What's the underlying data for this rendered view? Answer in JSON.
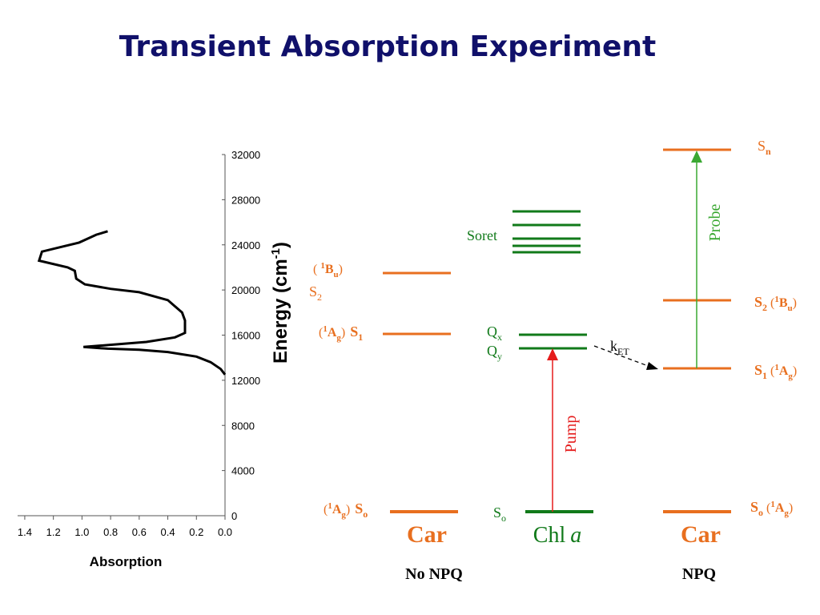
{
  "title": "Transient Absorption Experiment",
  "colors": {
    "title": "#10106a",
    "orange": "#e86f1f",
    "green": "#117a1a",
    "pump": "#e51c1c",
    "probe": "#3aa832"
  },
  "chart_data": {
    "type": "line",
    "xlabel": "Absorption",
    "ylabel": "Energy (cm-1)",
    "x_ticks": [
      "1.4",
      "1.2",
      "1.0",
      "0.8",
      "0.6",
      "0.4",
      "0.2",
      "0.0"
    ],
    "y_ticks": [
      "32000",
      "28000",
      "24000",
      "20000",
      "16000",
      "12000",
      "8000",
      "4000",
      "0"
    ],
    "xlim": [
      0.0,
      1.45
    ],
    "ylim": [
      0,
      32000
    ],
    "x_reversed": true,
    "series": [
      {
        "x": [
          0.0,
          0.03,
          0.1,
          0.2,
          0.4,
          0.6,
          0.82,
          0.99,
          0.55,
          0.35,
          0.28,
          0.28,
          0.28,
          0.3,
          0.4,
          0.6,
          0.8,
          0.98,
          1.04,
          1.05,
          1.1,
          1.3,
          1.28,
          1.15,
          1.02,
          0.9,
          0.82
        ],
        "y": [
          12500,
          13000,
          13600,
          14100,
          14500,
          14700,
          14800,
          14950,
          15400,
          15800,
          16200,
          16800,
          17300,
          18000,
          19100,
          19800,
          20100,
          20500,
          21000,
          21700,
          22000,
          22600,
          23400,
          23800,
          24200,
          24900,
          25200
        ]
      }
    ]
  },
  "diagram": {
    "left_col": {
      "label": "Car",
      "caption": "No NPQ",
      "s2_prefix": "( ",
      "s2_sup": "1",
      "s2_term": "B",
      "s2_sub": "u",
      "s2_suffix": ")",
      "s2_name": "S",
      "s2_name_sub": "2",
      "s1_open": "(",
      "s1_sup": "1",
      "s1_term": "A",
      "s1_sub": "g",
      "s1_close": ")",
      "s1_name": "S",
      "s1_name_sub": "1",
      "s0_open": "(",
      "s0_sup": "1",
      "s0_term": "A",
      "s0_sub": "g",
      "s0_close": ")",
      "s0_name": "S",
      "s0_name_sub": "o"
    },
    "chl_col": {
      "label": "Chl",
      "label_italic": "a",
      "soret": "Soret",
      "qx": "Q",
      "qx_sub": "x",
      "qy": "Q",
      "qy_sub": "y",
      "s0": "S",
      "s0_sub": "o",
      "pump": "Pump",
      "ket": "k",
      "ket_sub": "ET"
    },
    "right_col": {
      "label": "Car",
      "caption": "NPQ",
      "sn": "S",
      "sn_sub": "n",
      "s2": "S",
      "s2_sub": "2",
      "s2_open": " (",
      "s2_sup": "1",
      "s2_term": "B",
      "s2_term_sub": "u",
      "s2_close": ")",
      "s1": "S",
      "s1_sub": "1",
      "s1_open": " (",
      "s1_sup": "1",
      "s1_term": "A",
      "s1_term_sub": "g",
      "s1_close": ")",
      "s0": "S",
      "s0_sub": "o",
      "s0_open": " (",
      "s0_sup": "1",
      "s0_term": "A",
      "s0_term_sub": "g",
      "s0_close": ")",
      "probe": "Probe"
    },
    "ylabel_main": "Energy (cm",
    "ylabel_sup": "-1",
    "ylabel_close": ")"
  }
}
